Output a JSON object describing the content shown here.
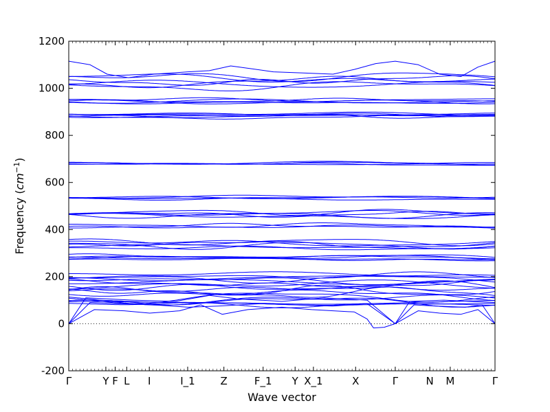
{
  "chart_data": {
    "type": "line",
    "title": "",
    "xlabel": "Wave vector",
    "ylabel_text": "Frequency (",
    "ylabel_unit_base": "cm",
    "ylabel_unit_exp": "−1",
    "ylabel_close": ")",
    "ylim": [
      -200,
      1200
    ],
    "yticks": [
      -200,
      0,
      200,
      400,
      600,
      800,
      1000,
      1200
    ],
    "xlim": [
      0,
      1
    ],
    "high_symmetry_points": [
      {
        "label": "Γ",
        "x": 0.0
      },
      {
        "label": "Y",
        "x": 0.087
      },
      {
        "label": "F",
        "x": 0.109
      },
      {
        "label": "L",
        "x": 0.136
      },
      {
        "label": "I",
        "x": 0.189
      },
      {
        "label": "I_1",
        "x": 0.279
      },
      {
        "label": "Z",
        "x": 0.364
      },
      {
        "label": "F_1",
        "x": 0.456
      },
      {
        "label": "Y",
        "x": 0.531
      },
      {
        "label": "X_1",
        "x": 0.574
      },
      {
        "label": "X",
        "x": 0.673
      },
      {
        "label": "Γ",
        "x": 0.766
      },
      {
        "label": "N",
        "x": 0.847
      },
      {
        "label": "M",
        "x": 0.895
      },
      {
        "label": "Γ",
        "x": 1.0
      }
    ],
    "zero_line": {
      "y": 0,
      "style": "dotted"
    },
    "line_color": "#0000ff",
    "groups": [
      {
        "base": 1030,
        "amp": 22,
        "count": 6
      },
      {
        "base": 945,
        "amp": 9,
        "count": 5
      },
      {
        "base": 885,
        "amp": 8,
        "count": 6
      },
      {
        "base": 680,
        "amp": 6,
        "count": 4
      },
      {
        "base": 535,
        "amp": 8,
        "count": 4
      },
      {
        "base": 465,
        "amp": 12,
        "count": 5
      },
      {
        "base": 415,
        "amp": 10,
        "count": 3
      },
      {
        "base": 335,
        "amp": 15,
        "count": 6
      },
      {
        "base": 280,
        "amp": 10,
        "count": 5
      },
      {
        "base": 190,
        "amp": 18,
        "count": 7
      },
      {
        "base": 130,
        "amp": 25,
        "count": 9
      },
      {
        "base": 85,
        "amp": 12,
        "count": 3
      }
    ],
    "acoustic_pocket": {
      "x": 0.71,
      "min": -20
    }
  }
}
